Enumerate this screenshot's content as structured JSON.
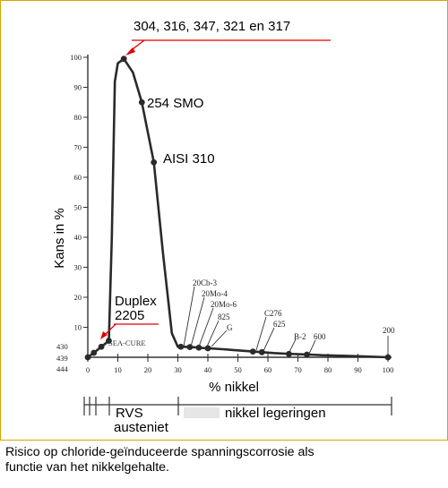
{
  "chart_data": {
    "type": "line",
    "xlabel": "% nikkel",
    "ylabel": "Kans in %",
    "xlim": [
      0,
      100
    ],
    "ylim": [
      0,
      100
    ],
    "x_ticks": [
      "0",
      "10",
      "20",
      "30",
      "40",
      "50",
      "60",
      "70",
      "80",
      "90",
      "100"
    ],
    "y_ticks": [
      "10",
      "20",
      "30",
      "40",
      "50",
      "60",
      "70",
      "80",
      "90",
      "100"
    ],
    "left_codes": [
      "430",
      "439",
      "444"
    ],
    "series": [
      {
        "x": [
          0,
          2,
          4.5,
          7,
          8,
          9,
          10,
          12,
          15,
          18,
          22,
          25,
          28,
          30,
          31,
          32,
          34,
          36,
          38,
          40,
          45,
          50,
          55,
          58,
          62,
          66,
          70,
          74,
          78,
          85,
          92,
          100
        ],
        "y": [
          0,
          1.5,
          3.5,
          5.5,
          40,
          92,
          98,
          99.5,
          95,
          85,
          65,
          35,
          8,
          3.5,
          3.5,
          3.5,
          3.4,
          3.3,
          3.1,
          3,
          2.7,
          2.3,
          1.9,
          1.7,
          1.4,
          1.2,
          1,
          0.9,
          0.7,
          0.5,
          0.3,
          0
        ]
      }
    ],
    "points": [
      {
        "x": 0,
        "y": 0
      },
      {
        "x": 2,
        "y": 1.5
      },
      {
        "x": 4.5,
        "y": 3.5
      },
      {
        "x": 7,
        "y": 5.5
      },
      {
        "x": 12,
        "y": 99.5
      },
      {
        "x": 18,
        "y": 85
      },
      {
        "x": 22,
        "y": 65
      },
      {
        "x": 31,
        "y": 3.5
      },
      {
        "x": 34,
        "y": 3.4
      },
      {
        "x": 37,
        "y": 3.2
      },
      {
        "x": 40,
        "y": 3
      },
      {
        "x": 55,
        "y": 1.9
      },
      {
        "x": 58,
        "y": 1.7
      },
      {
        "x": 67,
        "y": 1.1
      },
      {
        "x": 73,
        "y": 0.9
      },
      {
        "x": 100,
        "y": 0
      }
    ],
    "annotations": {
      "top_group": "304, 316, 347, 321 en 317",
      "smo": "254 SMO",
      "aisi": "AISI 310",
      "duplex_1": "Duplex",
      "duplex_2": "2205",
      "sea_cure": "SEA-CURE",
      "alloys": [
        "20Cb-3",
        "20Mo-4",
        "20Mo-6",
        "825",
        "G",
        "C276",
        "625",
        "B-2",
        "600",
        "200"
      ]
    },
    "groups": {
      "rvs_1": "RVS",
      "rvs_2": "austeniet",
      "nikkel": "nikkel legeringen"
    },
    "colors": {
      "annotation_line": "#e00000",
      "frame": "#d9a300",
      "data": "#2a2a2a"
    }
  },
  "caption": {
    "line1": "Risico op chloride-geïnduceerde spanningscorrosie als",
    "line2": "functie van het nikkelgehalte."
  }
}
